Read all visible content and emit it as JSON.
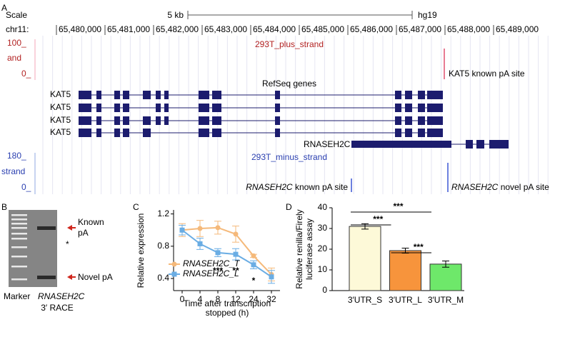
{
  "panel_a": {
    "label": "A",
    "scale_label": "Scale",
    "scale_text": "5 kb",
    "assembly": "hg19",
    "chrom": "chr11:",
    "coords": [
      "65,480,000",
      "65,481,000",
      "65,482,000",
      "65,483,000",
      "65,484,000",
      "65,485,000",
      "65,486,000",
      "65,487,000",
      "65,488,000",
      "65,489,000"
    ],
    "plus_track": {
      "name": "293T_plus_strand",
      "max": "100_",
      "side": "and",
      "zero": "0_"
    },
    "known_site": "KAT5 known pA site",
    "refseq": "RefSeq genes",
    "genes": [
      "KAT5",
      "KAT5",
      "KAT5",
      "KAT5",
      "RNASEH2C"
    ],
    "minus_track": {
      "name": "293T_minus_strand",
      "max": "180_",
      "side": "strand",
      "zero": "0_"
    },
    "minus_known": {
      "gene": "RNASEH2C",
      "text": "known pA site"
    },
    "minus_novel": {
      "gene": "RNASEH2C",
      "text": "novel pA site"
    }
  },
  "panel_b": {
    "label": "B",
    "lanes": [
      "Marker",
      "RNASEH2C"
    ],
    "method": "3′ RACE",
    "known": [
      "Known",
      "pA"
    ],
    "star": "*",
    "novel": "Novel pA"
  },
  "chart_data": [
    {
      "type": "line",
      "label": "C",
      "ylabel": "Relative expression",
      "xlabel": [
        "Time after transcription",
        "stopped (h)"
      ],
      "categories": [
        "0",
        "4",
        "8",
        "12",
        "24",
        "32"
      ],
      "series": [
        {
          "name": "RNASEH2C_T",
          "color": "#f5b97a",
          "values": [
            1.0,
            1.02,
            1.03,
            0.95,
            0.68,
            0.45
          ],
          "errors": [
            0.08,
            0.1,
            0.08,
            0.1,
            0.02,
            0.08
          ]
        },
        {
          "name": "RNASEH2C_L",
          "color": "#6aade4",
          "values": [
            1.0,
            0.83,
            0.72,
            0.7,
            0.57,
            0.42
          ],
          "errors": [
            0.06,
            0.07,
            0.05,
            0.07,
            0.05,
            0.08
          ]
        }
      ],
      "significance": [
        "***",
        "**",
        "*"
      ],
      "ylim": [
        0.25,
        1.25
      ],
      "yticks": [
        0.4,
        0.8,
        1.2
      ]
    },
    {
      "type": "bar",
      "label": "D",
      "ylabel": [
        "Relative renilla/Firely",
        "luciferase assay"
      ],
      "categories": [
        "3′UTR_S",
        "3′UTR_L",
        "3′UTR_M"
      ],
      "values": [
        31,
        19.3,
        12.8
      ],
      "errors": [
        1.3,
        1.2,
        1.5
      ],
      "colors": [
        "#fdf9d8",
        "#f7943c",
        "#6ee86a"
      ],
      "significance": [
        "***",
        "***",
        "***"
      ],
      "ylim": [
        0,
        40
      ],
      "yticks": [
        0,
        10,
        20,
        30,
        40
      ]
    }
  ]
}
